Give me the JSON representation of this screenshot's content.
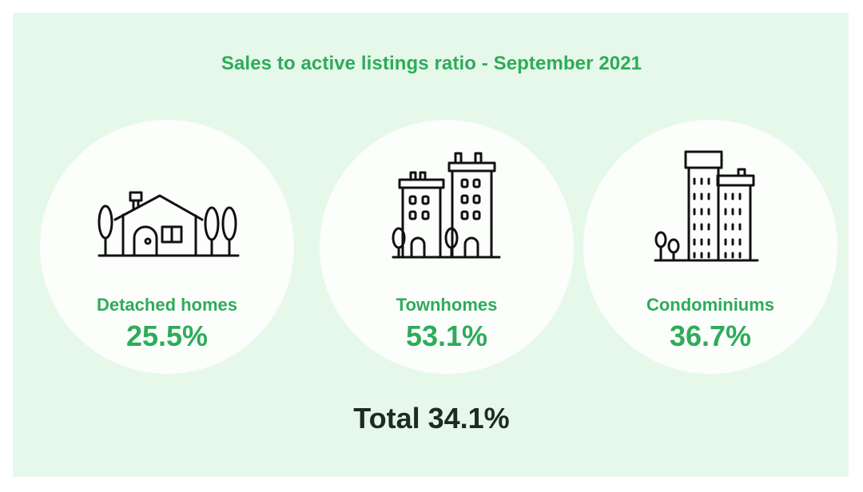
{
  "title": "Sales to active listings ratio - September 2021",
  "cards": [
    {
      "label": "Detached homes",
      "value": "25.5%",
      "icon": "house-icon"
    },
    {
      "label": "Townhomes",
      "value": "53.1%",
      "icon": "townhome-buildings-icon"
    },
    {
      "label": "Condominiums",
      "value": "36.7%",
      "icon": "condo-towers-icon"
    }
  ],
  "total": "Total 34.1%",
  "colors": {
    "accent": "#2fab5a",
    "panel": "#e6f8ea",
    "card": "#fbfefb",
    "total_text": "#1f2a24",
    "icon_stroke": "#111111"
  }
}
